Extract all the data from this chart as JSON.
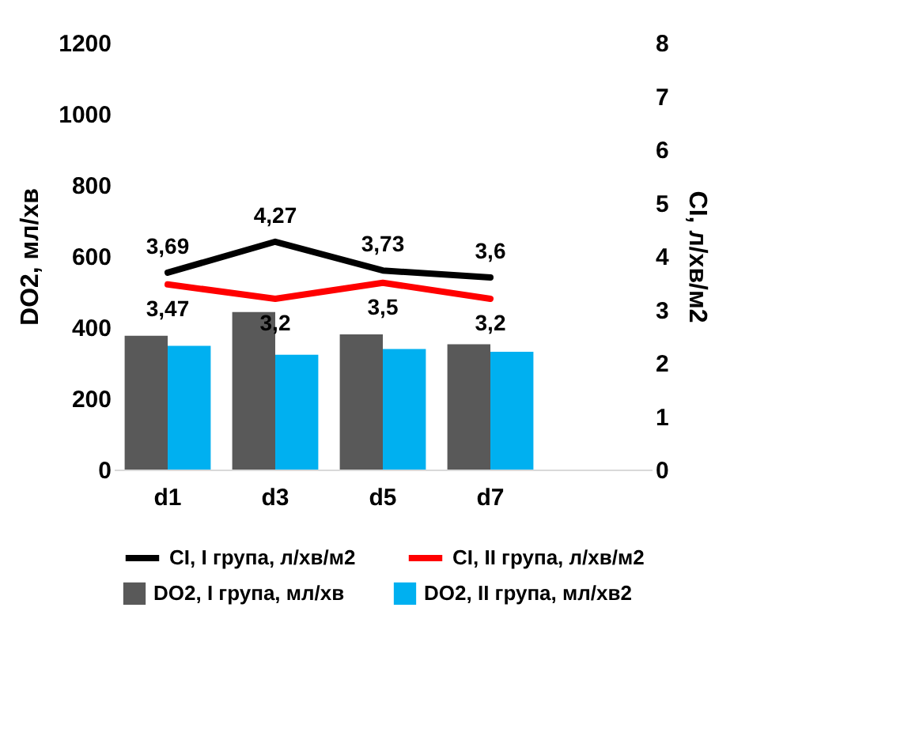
{
  "chart_data": {
    "type": "bar",
    "categories": [
      "d1",
      "d3",
      "d5",
      "d7",
      null
    ],
    "ylabel": "DO2, мл/хв",
    "y2label": "CI, л/хв/м2",
    "ylim": [
      0,
      1200
    ],
    "yticks": [
      0,
      200,
      400,
      600,
      800,
      1000,
      1200
    ],
    "y2lim": [
      0,
      8
    ],
    "y2ticks": [
      0,
      1,
      2,
      3,
      4,
      5,
      6,
      7,
      8
    ],
    "legend": "bottom",
    "grid": false,
    "series": [
      {
        "name": "DO2, I група, мл/хв",
        "color": "#595959",
        "values": [
          376,
          443,
          380,
          352,
          null
        ]
      },
      {
        "name": "DO2, II група, мл/хв2",
        "color": "#00b0f0",
        "values": [
          348,
          323,
          339,
          331,
          null
        ]
      },
      {
        "name": "CI, I група, л/хв/м2",
        "type": "line",
        "axis": "y2",
        "color": "#000000",
        "values": [
          3.69,
          4.27,
          3.73,
          3.6,
          null
        ],
        "value_labels": [
          "3,69",
          "4,27",
          "3,73",
          "3,6",
          null
        ]
      },
      {
        "name": "CI, II група, л/хв/м2",
        "type": "line",
        "axis": "y2",
        "color": "#ff0000",
        "values": [
          3.47,
          3.2,
          3.5,
          3.2,
          null
        ],
        "value_labels": [
          "3,47",
          "3,2",
          "3,5",
          "3,2",
          null
        ]
      }
    ]
  }
}
